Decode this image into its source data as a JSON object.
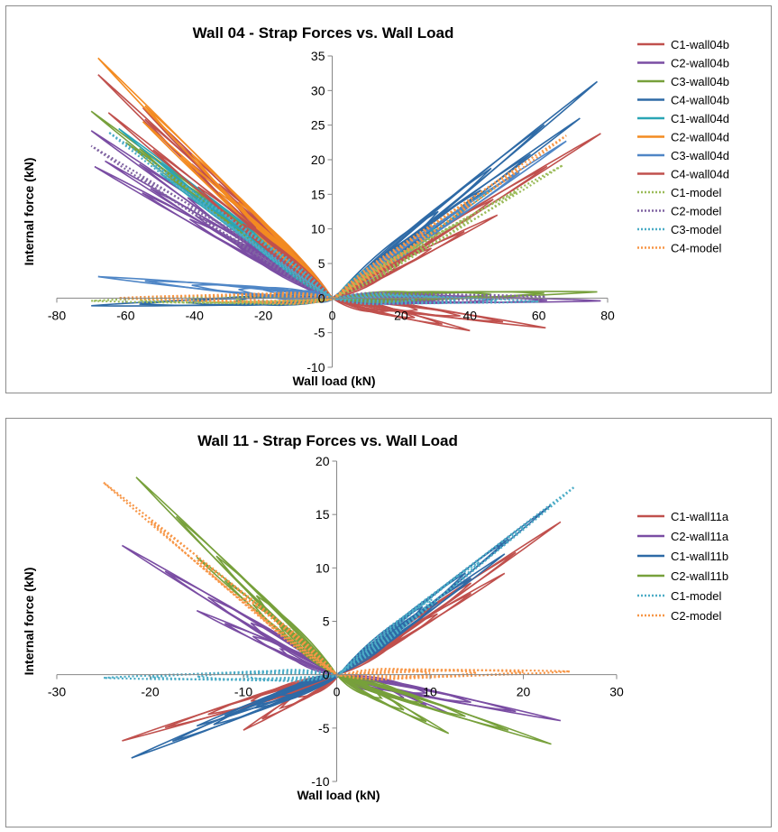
{
  "chart_data": [
    {
      "type": "line",
      "title": "Wall 04 - Strap Forces vs. Wall Load",
      "xlabel": "Wall load (kN)",
      "ylabel": "Internal force (kN)",
      "xlim": [
        -80,
        80
      ],
      "ylim": [
        -10,
        35
      ],
      "xticks": [
        -80,
        -60,
        -40,
        -20,
        0,
        20,
        40,
        60,
        80
      ],
      "yticks": [
        -10,
        -5,
        0,
        5,
        10,
        15,
        20,
        25,
        30,
        35
      ],
      "legend_position": "right",
      "series": [
        {
          "name": "C1-wall04b",
          "color": "#c0504d",
          "dash": "solid",
          "peaks": [
            [
              -68,
              32.3
            ],
            [
              -55,
              27.5
            ],
            [
              78,
              23.8
            ],
            [
              62,
              -4.3
            ],
            [
              40,
              -4.7
            ]
          ]
        },
        {
          "name": "C2-wall04b",
          "color": "#7a4da3",
          "dash": "solid",
          "peaks": [
            [
              -70,
              24.2
            ],
            [
              -66,
              19.8
            ],
            [
              -69,
              19.0
            ],
            [
              78,
              -0.4
            ]
          ]
        },
        {
          "name": "C3-wall04b",
          "color": "#77a03b",
          "dash": "solid",
          "peaks": [
            [
              -70,
              27.0
            ],
            [
              -60,
              22.5
            ],
            [
              77,
              0.9
            ]
          ]
        },
        {
          "name": "C4-wall04b",
          "color": "#2e6aa6",
          "dash": "solid",
          "peaks": [
            [
              77,
              31.3
            ],
            [
              72,
              26.0
            ],
            [
              -70,
              -1.1
            ]
          ]
        },
        {
          "name": "C1-wall04d",
          "color": "#2aa5b5",
          "dash": "solid",
          "peaks": [
            [
              -62,
              24.5
            ],
            [
              -50,
              18.0
            ],
            [
              50,
              17.0
            ]
          ]
        },
        {
          "name": "C2-wall04d",
          "color": "#f38b21",
          "dash": "solid",
          "peaks": [
            [
              -68,
              34.7
            ],
            [
              -55,
              25.5
            ]
          ]
        },
        {
          "name": "C3-wall04d",
          "color": "#4f86c6",
          "dash": "solid",
          "peaks": [
            [
              -68,
              3.1
            ],
            [
              68,
              22.7
            ],
            [
              -20,
              1.2
            ]
          ]
        },
        {
          "name": "C4-wall04d",
          "color": "#c0504d",
          "dash": "solid",
          "peaks": [
            [
              -65,
              26.8
            ],
            [
              48,
              12.0
            ]
          ]
        },
        {
          "name": "C1-model",
          "color": "#9bbb59",
          "dash": "dotted",
          "peaks": [
            [
              67,
              19.2
            ],
            [
              -70,
              -0.4
            ]
          ]
        },
        {
          "name": "C2-model",
          "color": "#8064a2",
          "dash": "dotted",
          "peaks": [
            [
              -70,
              22.0
            ],
            [
              62,
              0.2
            ]
          ]
        },
        {
          "name": "C3-model",
          "color": "#4bacc6",
          "dash": "dotted",
          "peaks": [
            [
              -65,
              24.0
            ],
            [
              60,
              -0.5
            ]
          ]
        },
        {
          "name": "C4-model",
          "color": "#f79646",
          "dash": "dotted",
          "peaks": [
            [
              68,
              23.5
            ],
            [
              -62,
              0.0
            ]
          ]
        }
      ]
    },
    {
      "type": "line",
      "title": "Wall 11 - Strap Forces vs. Wall Load",
      "xlabel": "Wall load (kN)",
      "ylabel": "Internal force (kN)",
      "xlim": [
        -30,
        30
      ],
      "ylim": [
        -10,
        20
      ],
      "xticks": [
        -30,
        -20,
        -10,
        0,
        10,
        20,
        30
      ],
      "yticks": [
        -10,
        -5,
        0,
        5,
        10,
        15,
        20
      ],
      "legend_position": "right",
      "series": [
        {
          "name": "C1-wall11a",
          "color": "#c0504d",
          "dash": "solid",
          "peaks": [
            [
              24,
              14.3
            ],
            [
              18,
              9.5
            ],
            [
              -23,
              -6.2
            ],
            [
              -10,
              -5.2
            ]
          ]
        },
        {
          "name": "C2-wall11a",
          "color": "#7a4da3",
          "dash": "solid",
          "peaks": [
            [
              -23,
              12.1
            ],
            [
              -15,
              6.0
            ],
            [
              24,
              -4.3
            ],
            [
              12,
              -3.6
            ]
          ]
        },
        {
          "name": "C1-wall11b",
          "color": "#2e6aa6",
          "dash": "solid",
          "peaks": [
            [
              23,
              15.9
            ],
            [
              18,
              11.3
            ],
            [
              -22,
              -7.8
            ],
            [
              -15,
              -4.8
            ]
          ]
        },
        {
          "name": "C2-wall11b",
          "color": "#77a03b",
          "dash": "solid",
          "peaks": [
            [
              -21.5,
              18.5
            ],
            [
              -15,
              11.0
            ],
            [
              23,
              -6.5
            ],
            [
              12,
              -5.5
            ]
          ]
        },
        {
          "name": "C1-model",
          "color": "#4bacc6",
          "dash": "dotted",
          "peaks": [
            [
              25.5,
              17.6
            ],
            [
              -25,
              -0.3
            ]
          ]
        },
        {
          "name": "C2-model",
          "color": "#f79646",
          "dash": "dotted",
          "peaks": [
            [
              -25,
              18.0
            ],
            [
              25,
              0.3
            ]
          ]
        }
      ]
    }
  ]
}
